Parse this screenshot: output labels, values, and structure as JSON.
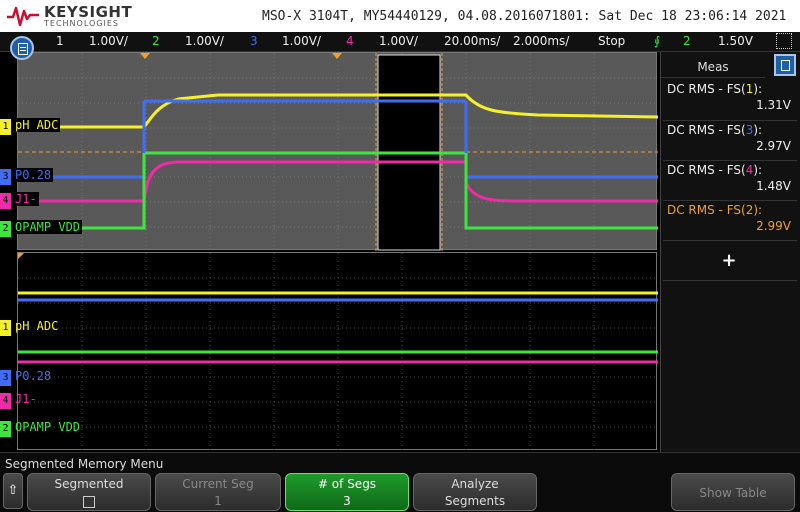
{
  "header": {
    "brand": "KEYSIGHT",
    "brand_sub": "TECHNOLOGIES",
    "instrument_info": "MSO-X 3104T, MY54440129, 04.08.2016071801: Sat Dec 18 23:06:14 2021"
  },
  "channel_bar": {
    "ch1": {
      "num": "1",
      "scale": "1.00V/"
    },
    "ch2": {
      "num": "2",
      "scale": "1.00V/"
    },
    "ch3": {
      "num": "3",
      "scale": "1.00V/"
    },
    "ch4": {
      "num": "4",
      "scale": "1.00V/"
    },
    "timebase": "20.00ms/",
    "zoom_timebase": "2.000ms/",
    "run_state": "Stop",
    "trigger_icon": "trigger-edge-icon",
    "trigger_source": "2",
    "trigger_level": "1.50V"
  },
  "channels": [
    {
      "id": "1",
      "label": "pH ADC",
      "color": "#f5f02a"
    },
    {
      "id": "3",
      "label": "P0.28",
      "color": "#3f6ef5"
    },
    {
      "id": "4",
      "label": "J1-",
      "color": "#f02aa8"
    },
    {
      "id": "2",
      "label": "OPAMP VDD",
      "color": "#3ee53e"
    }
  ],
  "measurements": {
    "title": "Meas",
    "items": [
      {
        "label_prefix": "DC RMS - FS(",
        "ch": "1",
        "label_suffix": "):",
        "value": "1.31V",
        "color": "#eeeeee",
        "ch_color": "#f5f02a"
      },
      {
        "label_prefix": "DC RMS - FS(",
        "ch": "3",
        "label_suffix": "):",
        "value": "2.97V",
        "color": "#eeeeee",
        "ch_color": "#3f6ef5"
      },
      {
        "label_prefix": "DC RMS - FS(",
        "ch": "4",
        "label_suffix": "):",
        "value": "1.48V",
        "color": "#eeeeee",
        "ch_color": "#f02aa8"
      },
      {
        "label_prefix": "DC RMS - FS(",
        "ch": "2",
        "label_suffix": "):",
        "value": "2.99V",
        "color": "#f0a030",
        "ch_color": "#f0a030"
      }
    ],
    "add_label": "+"
  },
  "softkeys": {
    "menu_title": "Segmented Memory Menu",
    "back": "⇧",
    "segmented": "Segmented",
    "current_seg_label": "Current Seg",
    "current_seg_value": "1",
    "num_segs_label": "# of Segs",
    "num_segs_value": "3",
    "analyze_line1": "Analyze",
    "analyze_line2": "Segments",
    "show_table": "Show Table"
  },
  "colors": {
    "ch1": "#f5f02a",
    "ch2": "#3ee53e",
    "ch3": "#3f6ef5",
    "ch4": "#f02aa8",
    "trigger": "#f0a030"
  }
}
